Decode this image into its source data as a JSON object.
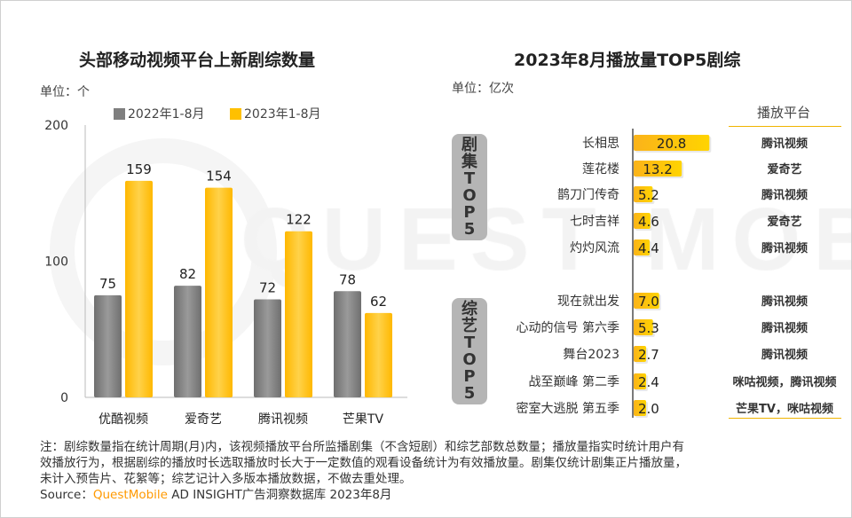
{
  "chart_data": [
    {
      "type": "bar",
      "title": "头部移动视频平台上新剧综数量",
      "unit_label": "单位：个",
      "categories": [
        "优酷视频",
        "爱奇艺",
        "腾讯视频",
        "芒果TV"
      ],
      "series": [
        {
          "name": "2022年1-8月",
          "values": [
            75,
            82,
            72,
            78
          ],
          "color": "#7f7f7f"
        },
        {
          "name": "2023年1-8月",
          "values": [
            159,
            154,
            122,
            62
          ],
          "color": "#ffc000"
        }
      ],
      "ylim": [
        0,
        200
      ],
      "yticks": [
        "0",
        "100",
        "200"
      ],
      "legend": "top"
    },
    {
      "type": "bar",
      "orientation": "horizontal",
      "title": "2023年8月播放量TOP5剧综",
      "unit_label": "单位：亿次",
      "platform_header": "播放平台",
      "color": "#ffc000",
      "groups": [
        {
          "label": [
            "剧",
            "集",
            "T",
            "O",
            "P",
            "5"
          ],
          "items": [
            {
              "name": "长相思",
              "value": 20.8,
              "platform": "腾讯视频"
            },
            {
              "name": "莲花楼",
              "value": 13.2,
              "platform": "爱奇艺"
            },
            {
              "name": "鹊刀门传奇",
              "value": 5.2,
              "platform": "腾讯视频"
            },
            {
              "name": "七时吉祥",
              "value": 4.6,
              "platform": "爱奇艺"
            },
            {
              "name": "灼灼风流",
              "value": 4.4,
              "platform": "腾讯视频"
            }
          ]
        },
        {
          "label": [
            "综",
            "艺",
            "T",
            "O",
            "P",
            "5"
          ],
          "items": [
            {
              "name": "现在就出发",
              "value": 7.0,
              "platform": "腾讯视频"
            },
            {
              "name": "心动的信号 第六季",
              "value": 5.3,
              "platform": "腾讯视频"
            },
            {
              "name": "舞台2023",
              "value": 2.7,
              "platform": "腾讯视频"
            },
            {
              "name": "战至巅峰 第二季",
              "value": 2.4,
              "platform": "咪咕视频，腾讯视频"
            },
            {
              "name": "密室大逃脱 第五季",
              "value": 2.0,
              "platform": "芒果TV，咪咕视频"
            }
          ]
        }
      ]
    }
  ],
  "watermark": "QUEST MOBILE",
  "notes": [
    "注：剧综数量指在统计周期(月)内，该视频播放平台所监播剧集（不含短剧）和综艺部数总数量；播放量指实时统计用户有",
    "效播放行为，根据剧综的播放时长选取播放时长大于一定数值的观看设备统计为有效播放量。剧集仅统计剧集正片播放量，",
    "未计入预告片、花絮等；综艺记计入多版本播放数据，不做去重处理。"
  ],
  "source": {
    "prefix": "Source：",
    "brand": "QuestMobile",
    "rest": " AD INSIGHT广告洞察数据库 2023年8月",
    "brand_color": "#ff9900"
  }
}
